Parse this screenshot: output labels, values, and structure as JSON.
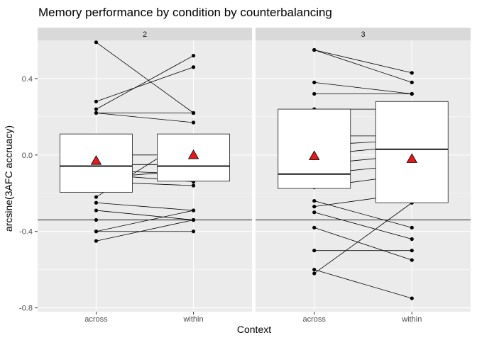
{
  "chart_data": {
    "type": "boxplot-with-paired-points",
    "title": "Memory performance by condition by counterbalancing",
    "xlabel": "Context",
    "ylabel": "arcsine(3AFC accruacy)",
    "categories": [
      "across",
      "within"
    ],
    "ylim": [
      -0.82,
      0.6
    ],
    "yticks": [
      0.4,
      0.0,
      -0.4,
      -0.8
    ],
    "ytick_labels": [
      "0.4",
      "0.0",
      "-0.4",
      "-0.8"
    ],
    "reference_line_y": -0.34,
    "grid": true,
    "colors": {
      "panel_bg": "#ebebeb",
      "strip_bg": "#d9d9d9",
      "grid_major": "#ffffff",
      "box_fill": "#ffffff",
      "line": "#000000",
      "mean_marker": "#e41a1c"
    },
    "facets": [
      {
        "label": "2",
        "boxes": [
          {
            "category": "across",
            "q1": -0.195,
            "median": -0.058,
            "q3": 0.11,
            "mean": -0.03
          },
          {
            "category": "within",
            "q1": -0.137,
            "median": -0.058,
            "q3": 0.11,
            "mean": 0.0
          }
        ],
        "pairs": [
          [
            0.59,
            0.22
          ],
          [
            0.28,
            0.46
          ],
          [
            0.24,
            0.52
          ],
          [
            0.22,
            0.22
          ],
          [
            0.22,
            0.17
          ],
          [
            0.0,
            0.0
          ],
          [
            -0.05,
            -0.05
          ],
          [
            -0.08,
            -0.1
          ],
          [
            -0.1,
            -0.14
          ],
          [
            -0.12,
            -0.08
          ],
          [
            -0.14,
            -0.16
          ],
          [
            -0.22,
            0.1
          ],
          [
            -0.25,
            -0.29
          ],
          [
            -0.29,
            -0.34
          ],
          [
            -0.34,
            -0.34
          ],
          [
            -0.4,
            -0.29
          ],
          [
            -0.4,
            -0.4
          ],
          [
            -0.45,
            -0.34
          ]
        ]
      },
      {
        "label": "3",
        "boxes": [
          {
            "category": "across",
            "q1": -0.175,
            "median": -0.1,
            "q3": 0.24,
            "mean": -0.005
          },
          {
            "category": "within",
            "q1": -0.25,
            "median": 0.03,
            "q3": 0.28,
            "mean": -0.02
          }
        ],
        "pairs": [
          [
            0.55,
            0.43
          ],
          [
            0.55,
            0.38
          ],
          [
            0.38,
            0.32
          ],
          [
            0.32,
            0.32
          ],
          [
            0.24,
            0.24
          ],
          [
            0.1,
            0.1
          ],
          [
            0.05,
            0.08
          ],
          [
            0.0,
            0.05
          ],
          [
            -0.05,
            0.0
          ],
          [
            -0.1,
            -0.05
          ],
          [
            -0.17,
            -0.1
          ],
          [
            -0.24,
            -0.38
          ],
          [
            -0.27,
            -0.2
          ],
          [
            -0.38,
            -0.55
          ],
          [
            -0.5,
            -0.5
          ],
          [
            -0.62,
            -0.25
          ],
          [
            -0.6,
            -0.75
          ],
          [
            -0.3,
            -0.44
          ]
        ]
      }
    ]
  }
}
